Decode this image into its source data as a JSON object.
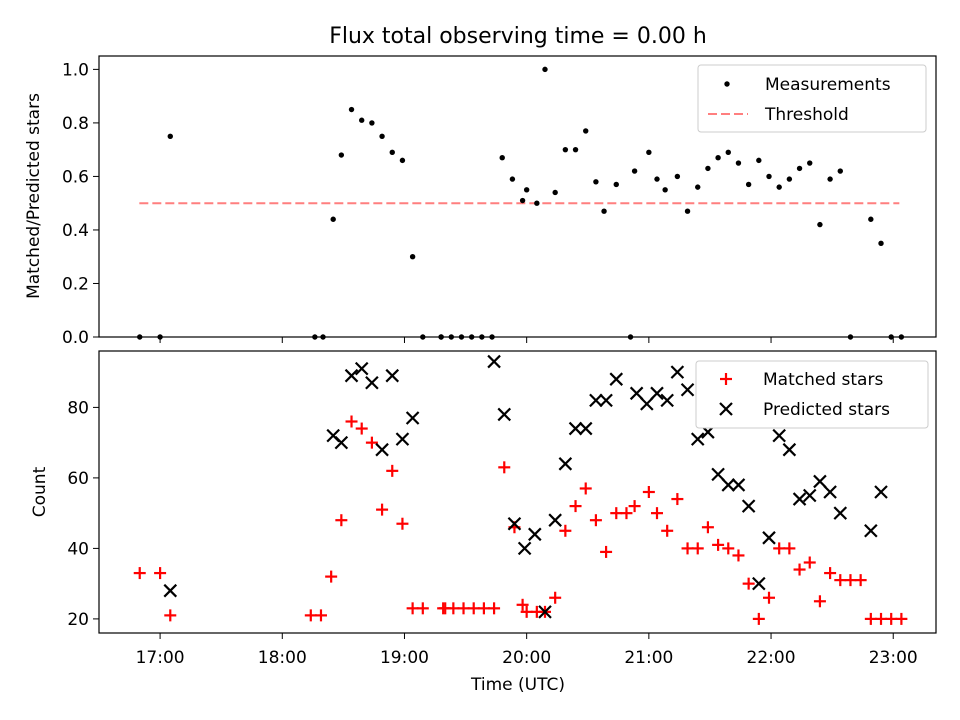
{
  "chart_data": [
    {
      "type": "scatter",
      "title": "Flux total observing time = 0.00 h",
      "ylabel": "Matched/Predicted stars",
      "ylim": [
        0,
        1.05
      ],
      "yticks": [
        "0.0",
        "0.2",
        "0.4",
        "0.6",
        "0.8",
        "1.0"
      ],
      "xlim_hours": [
        16.5,
        23.35
      ],
      "legend": {
        "placement": "upper right",
        "entries": [
          "Measurements",
          "Threshold"
        ]
      },
      "colors": {
        "measurements": "#000000",
        "threshold": "#ff7f7f"
      },
      "threshold": {
        "name": "Threshold",
        "value": 0.5,
        "x_range": [
          "16.83",
          "23.05"
        ]
      },
      "series": [
        {
          "name": "Measurements",
          "x": [
            "16:50",
            "17:00",
            "17:05",
            "18:16",
            "18:20",
            "18:25",
            "18:29",
            "18:34",
            "18:39",
            "18:44",
            "18:49",
            "18:54",
            "18:59",
            "19:04",
            "19:09",
            "19:18",
            "19:18",
            "19:23",
            "19:28",
            "19:33",
            "19:38",
            "19:43",
            "19:48",
            "19:53",
            "19:58",
            "20:00",
            "20:05",
            "20:09",
            "20:14",
            "20:19",
            "20:24",
            "20:29",
            "20:34",
            "20:38",
            "20:44",
            "20:51",
            "20:53",
            "21:00",
            "21:04",
            "21:08",
            "21:14",
            "21:19",
            "21:24",
            "21:29",
            "21:34",
            "21:39",
            "21:44",
            "21:49",
            "21:54",
            "21:59",
            "22:04",
            "22:09",
            "22:14",
            "22:19",
            "22:24",
            "22:29",
            "22:34",
            "22:39",
            "22:49",
            "22:54",
            "22:59",
            "23:04"
          ],
          "y": [
            0.0,
            0.0,
            0.75,
            0.0,
            0.0,
            0.44,
            0.68,
            0.85,
            0.81,
            0.8,
            0.75,
            0.69,
            0.66,
            0.3,
            0.0,
            0.0,
            0.0,
            0.0,
            0.0,
            0.0,
            0.0,
            0.0,
            0.67,
            0.59,
            0.51,
            0.55,
            0.5,
            1.0,
            0.54,
            0.7,
            0.7,
            0.77,
            0.58,
            0.47,
            0.57,
            0.0,
            0.62,
            0.69,
            0.59,
            0.55,
            0.6,
            0.47,
            0.56,
            0.63,
            0.67,
            0.69,
            0.65,
            0.57,
            0.66,
            0.6,
            0.56,
            0.59,
            0.63,
            0.65,
            0.42,
            0.59,
            0.62,
            0.0,
            0.44,
            0.35,
            0.0,
            0.0
          ]
        }
      ]
    },
    {
      "type": "scatter",
      "xlabel": "Time (UTC)",
      "ylabel": "Count",
      "ylim": [
        16,
        96
      ],
      "yticks": [
        "20",
        "40",
        "60",
        "80"
      ],
      "xlim_hours": [
        16.5,
        23.35
      ],
      "xticks": [
        "17:00",
        "18:00",
        "19:00",
        "20:00",
        "21:00",
        "22:00",
        "23:00"
      ],
      "legend": {
        "placement": "upper right",
        "entries": [
          "Matched stars",
          "Predicted stars"
        ]
      },
      "colors": {
        "matched": "#ff0000",
        "predicted": "#000000"
      },
      "series": [
        {
          "name": "Matched stars",
          "marker": "plus",
          "x": [
            "16:50",
            "17:00",
            "17:05",
            "18:14",
            "18:19",
            "18:24",
            "18:29",
            "18:34",
            "18:39",
            "18:44",
            "18:49",
            "18:54",
            "18:59",
            "19:04",
            "19:09",
            "19:19",
            "19:20",
            "19:24",
            "19:29",
            "19:34",
            "19:39",
            "19:44",
            "19:49",
            "19:54",
            "19:58",
            "20:00",
            "20:05",
            "20:09",
            "20:14",
            "20:19",
            "20:24",
            "20:29",
            "20:34",
            "20:39",
            "20:44",
            "20:49",
            "20:53",
            "21:00",
            "21:04",
            "21:09",
            "21:14",
            "21:19",
            "21:24",
            "21:29",
            "21:34",
            "21:39",
            "21:44",
            "21:49",
            "21:54",
            "21:59",
            "22:04",
            "22:09",
            "22:14",
            "22:19",
            "22:24",
            "22:29",
            "22:34",
            "22:39",
            "22:44",
            "22:49",
            "22:54",
            "22:59",
            "23:04"
          ],
          "y": [
            33,
            33,
            21,
            21,
            21,
            32,
            48,
            76,
            74,
            70,
            51,
            62,
            47,
            23,
            23,
            23,
            23,
            23,
            23,
            23,
            23,
            23,
            63,
            46,
            24,
            22,
            22,
            22,
            26,
            45,
            52,
            57,
            48,
            39,
            50,
            50,
            52,
            56,
            50,
            45,
            54,
            40,
            40,
            46,
            41,
            40,
            38,
            30,
            20,
            26,
            40,
            40,
            34,
            36,
            25,
            33,
            31,
            31,
            31,
            20,
            20,
            20,
            20
          ]
        },
        {
          "name": "Predicted stars",
          "marker": "x",
          "x": [
            "17:05",
            "18:25",
            "18:29",
            "18:34",
            "18:39",
            "18:44",
            "18:49",
            "18:54",
            "18:59",
            "19:04",
            "19:44",
            "19:49",
            "19:54",
            "19:59",
            "20:04",
            "20:09",
            "20:14",
            "20:19",
            "20:24",
            "20:29",
            "20:34",
            "20:39",
            "20:44",
            "20:54",
            "20:59",
            "21:04",
            "21:09",
            "21:14",
            "21:19",
            "21:24",
            "21:29",
            "21:34",
            "21:39",
            "21:44",
            "21:49",
            "21:54",
            "21:59",
            "22:04",
            "22:09",
            "22:14",
            "22:19",
            "22:24",
            "22:29",
            "22:34",
            "22:49",
            "22:54"
          ],
          "y": [
            28,
            72,
            70,
            89,
            91,
            87,
            68,
            89,
            71,
            77,
            93,
            78,
            47,
            40,
            44,
            22,
            48,
            64,
            74,
            74,
            82,
            82,
            88,
            84,
            81,
            84,
            82,
            90,
            85,
            71,
            73,
            61,
            58,
            58,
            52,
            30,
            43,
            72,
            68,
            54,
            55,
            59,
            56,
            50,
            45,
            56
          ]
        }
      ]
    }
  ]
}
